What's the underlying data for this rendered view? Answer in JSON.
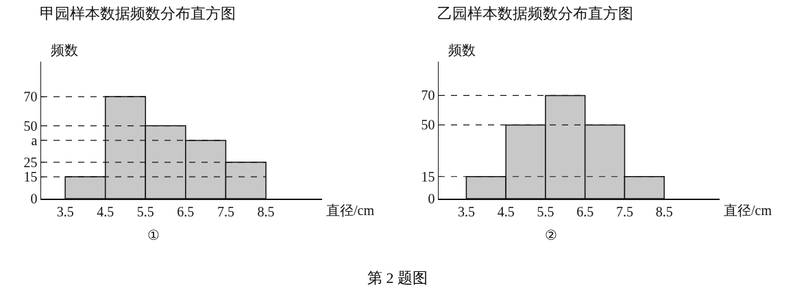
{
  "chart_data": [
    {
      "type": "histogram",
      "title": "甲园样本数据频数分布直方图",
      "ylabel": "频数",
      "xlabel": "直径/cm",
      "annotations": [
        "①"
      ],
      "bins": [
        3.5,
        4.5,
        5.5,
        6.5,
        7.5,
        8.5
      ],
      "values": [
        15,
        70,
        50,
        40,
        25
      ],
      "color": "#c8c8c8",
      "xlim": [
        2.9,
        9.9
      ],
      "xticks": [
        3.5,
        4.5,
        5.5,
        6.5,
        7.5,
        8.5
      ],
      "ylim": [
        0,
        94
      ],
      "yticks": [
        0,
        15,
        25,
        {
          "value": 40,
          "label": "a"
        },
        50,
        70
      ],
      "ref_lines": [
        {
          "axis": "y",
          "value": 15,
          "line_style": "dashed"
        },
        {
          "axis": "y",
          "value": 25,
          "line_style": "dashed"
        },
        {
          "axis": "y",
          "value": 40,
          "line_style": "dashed"
        },
        {
          "axis": "y",
          "value": 50,
          "line_style": "dashed"
        },
        {
          "axis": "y",
          "value": 70,
          "line_style": "dashed"
        }
      ]
    },
    {
      "type": "histogram",
      "title": "乙园样本数据频数分布直方图",
      "ylabel": "频数",
      "xlabel": "直径/cm",
      "annotations": [
        "②",
        "第 2 题图"
      ],
      "bins": [
        3.5,
        4.5,
        5.5,
        6.5,
        7.5,
        8.5
      ],
      "values": [
        15,
        50,
        70,
        50,
        15
      ],
      "color": "#c8c8c8",
      "xlim": [
        2.8,
        9.9
      ],
      "xticks": [
        3.5,
        4.5,
        5.5,
        6.5,
        7.5,
        8.5
      ],
      "ylim": [
        0,
        93
      ],
      "yticks": [
        0,
        15,
        50,
        70
      ],
      "ref_lines": [
        {
          "axis": "y",
          "value": 15,
          "line_style": "dashed"
        },
        {
          "axis": "y",
          "value": 50,
          "line_style": "dashed"
        },
        {
          "axis": "y",
          "value": 70,
          "line_style": "dashed"
        }
      ]
    }
  ]
}
